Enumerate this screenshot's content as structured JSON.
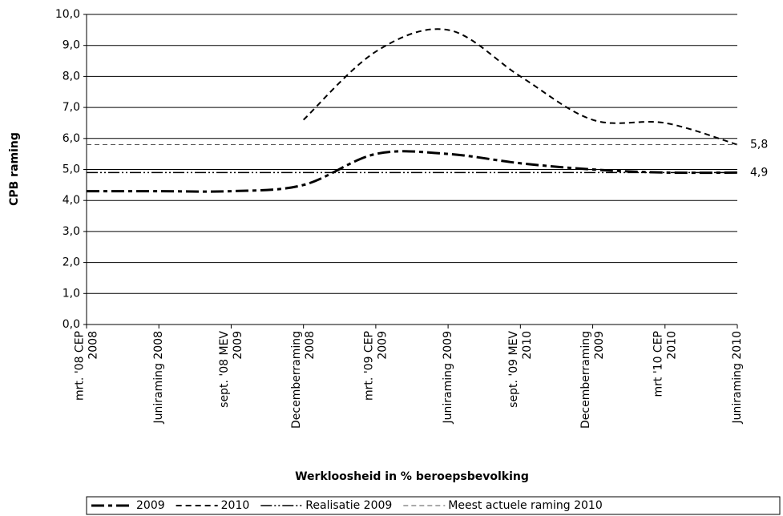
{
  "chart_data": {
    "type": "line",
    "ylabel": "CPB raming",
    "xlabel": "Werkloosheid in % beroepsbevolking",
    "categories": [
      [
        "mrt. '08 CEP",
        "2008"
      ],
      [
        "Juniraming 2008"
      ],
      [
        "sept. '08 MEV",
        "2009"
      ],
      [
        "Decemberraming",
        "2008"
      ],
      [
        "mrt. '09 CEP",
        "2009"
      ],
      [
        "Juniraming 2009"
      ],
      [
        "sept. '09 MEV",
        "2010"
      ],
      [
        "Decemberraming",
        "2009"
      ],
      [
        "mrt '10 CEP",
        "2010"
      ],
      [
        "Juniraming 2010"
      ]
    ],
    "series": [
      {
        "name": "2009",
        "color": "#000000",
        "dash": "16 5 5 5",
        "width": 3,
        "smooth": true,
        "values": [
          4.3,
          4.3,
          4.3,
          4.5,
          5.5,
          5.5,
          5.2,
          5.0,
          4.9,
          4.9
        ]
      },
      {
        "name": "2010",
        "color": "#000000",
        "dash": "7 5",
        "width": 2,
        "smooth": true,
        "values": [
          null,
          null,
          null,
          6.6,
          8.8,
          9.5,
          8.0,
          6.6,
          6.5,
          5.8
        ]
      },
      {
        "name": "Realisatie 2009",
        "color": "#000000",
        "dash": "14 3 2 3 2 3",
        "width": 1.5,
        "smooth": false,
        "values": [
          4.9,
          4.9,
          4.9,
          4.9,
          4.9,
          4.9,
          4.9,
          4.9,
          4.9,
          4.9
        ],
        "value_labels": [
          null,
          null,
          null,
          null,
          null,
          null,
          null,
          null,
          null,
          "4,9"
        ]
      },
      {
        "name": "Meest actuele raming 2010",
        "color": "#555555",
        "dash": "6 4",
        "width": 1,
        "smooth": false,
        "values": [
          5.8,
          5.8,
          5.8,
          5.8,
          5.8,
          5.8,
          5.8,
          5.8,
          5.8,
          5.8
        ],
        "value_labels": [
          null,
          null,
          null,
          null,
          null,
          null,
          null,
          null,
          null,
          "5,8"
        ]
      }
    ],
    "ylim": [
      0,
      10
    ],
    "yticks": [
      {
        "value": 0,
        "label": "0,0"
      },
      {
        "value": 1,
        "label": "1,0"
      },
      {
        "value": 2,
        "label": "2,0"
      },
      {
        "value": 3,
        "label": "3,0"
      },
      {
        "value": 4,
        "label": "4,0"
      },
      {
        "value": 5,
        "label": "5,0"
      },
      {
        "value": 6,
        "label": "6,0"
      },
      {
        "value": 7,
        "label": "7,0"
      },
      {
        "value": 8,
        "label": "8,0"
      },
      {
        "value": 9,
        "label": "9,0"
      },
      {
        "value": 10,
        "label": "10,0"
      }
    ],
    "grid": true,
    "legend": "bottom"
  }
}
